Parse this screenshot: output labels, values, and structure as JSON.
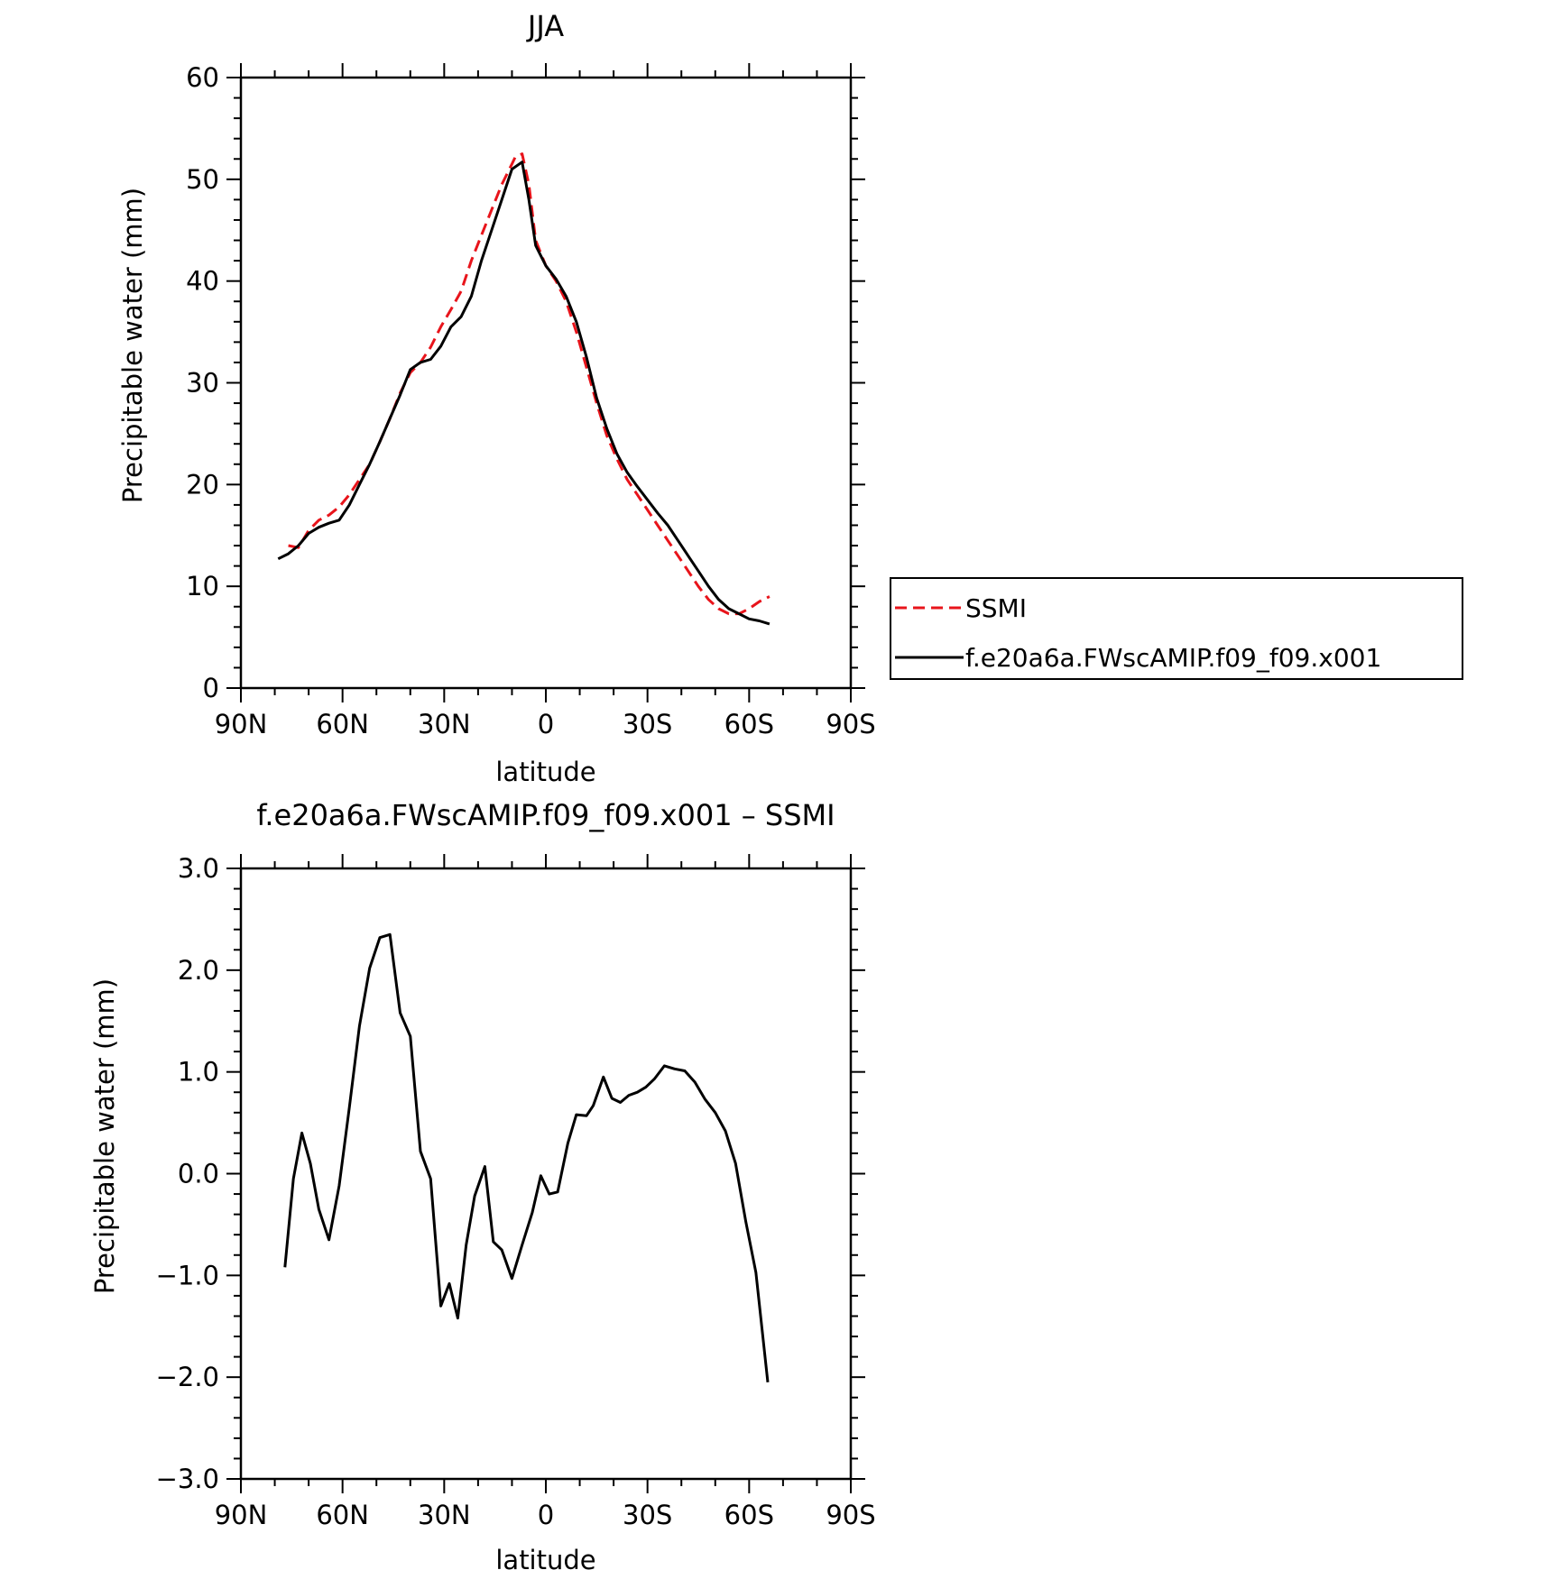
{
  "chart_data": [
    {
      "type": "line",
      "title": "JJA",
      "xlabel": "latitude",
      "ylabel": "Precipitable water (mm)",
      "xlim": [
        90,
        -90
      ],
      "ylim": [
        0,
        60
      ],
      "x_ticks": [
        90,
        60,
        30,
        0,
        -30,
        -60,
        -90
      ],
      "x_tick_labels": [
        "90N",
        "60N",
        "30N",
        "0",
        "30S",
        "60S",
        "90S"
      ],
      "y_ticks": [
        0,
        10,
        20,
        30,
        40,
        50,
        60
      ],
      "y_tick_labels": [
        "0",
        "10",
        "20",
        "30",
        "40",
        "50",
        "60"
      ],
      "legend_position": "right",
      "series": [
        {
          "name": "SSMI",
          "color": "#e8141b",
          "dash": "dashed",
          "x": [
            76,
            73,
            70,
            67,
            64,
            61,
            58,
            55,
            52,
            49,
            46,
            43,
            40,
            37,
            34,
            31,
            28,
            25,
            22,
            19,
            16,
            13,
            10,
            9,
            7,
            5,
            3,
            0,
            -3,
            -6,
            -9,
            -12,
            -15,
            -18,
            -21,
            -24,
            -27,
            -30,
            -33,
            -36,
            -39,
            -42,
            -45,
            -48,
            -51,
            -54,
            -57,
            -60,
            -63,
            -66
          ],
          "y": [
            14.0,
            13.8,
            15.5,
            16.5,
            17.0,
            17.8,
            19.0,
            20.5,
            22.0,
            24.2,
            26.5,
            29.0,
            31.0,
            32.0,
            33.5,
            35.5,
            37.2,
            39.0,
            42.0,
            44.5,
            47.0,
            49.5,
            51.5,
            52.2,
            52.5,
            49.5,
            44.0,
            41.5,
            40.0,
            38.0,
            35.0,
            31.5,
            28.0,
            24.8,
            22.5,
            20.5,
            19.0,
            17.5,
            16.0,
            14.5,
            13.0,
            11.5,
            10.0,
            8.7,
            7.8,
            7.3,
            7.3,
            7.8,
            8.5,
            9.0
          ]
        },
        {
          "name": "f.e20a6a.FWscAMIP.f09_f09.x001",
          "color": "#000000",
          "dash": "solid",
          "x": [
            79,
            76,
            73,
            70,
            67,
            64,
            61,
            58,
            55,
            52,
            49,
            46,
            43,
            40,
            37,
            34,
            31,
            28,
            25,
            22,
            19,
            16,
            13,
            10,
            7,
            5,
            3,
            0,
            -3,
            -6,
            -9,
            -12,
            -15,
            -18,
            -21,
            -24,
            -27,
            -30,
            -33,
            -36,
            -39,
            -42,
            -45,
            -48,
            -51,
            -54,
            -57,
            -60,
            -63,
            -66
          ],
          "y": [
            12.7,
            13.2,
            14.0,
            15.2,
            15.8,
            16.2,
            16.5,
            18.0,
            20.0,
            22.0,
            24.2,
            26.5,
            28.8,
            31.3,
            32.0,
            32.3,
            33.6,
            35.5,
            36.5,
            38.5,
            42.0,
            45.0,
            48.0,
            51.0,
            51.7,
            48.0,
            43.5,
            41.5,
            40.2,
            38.5,
            36.0,
            32.5,
            28.5,
            25.5,
            23.0,
            21.2,
            19.8,
            18.5,
            17.2,
            16.0,
            14.5,
            13.0,
            11.5,
            10.0,
            8.7,
            7.8,
            7.3,
            6.8,
            6.6,
            6.3
          ]
        }
      ]
    },
    {
      "type": "line",
      "title": "f.e20a6a.FWscAMIP.f09_f09.x001 – SSMI",
      "xlabel": "latitude",
      "ylabel": "Precipitable water (mm)",
      "xlim": [
        90,
        -90
      ],
      "ylim": [
        -3.0,
        3.0
      ],
      "x_ticks": [
        90,
        60,
        30,
        0,
        -30,
        -60,
        -90
      ],
      "x_tick_labels": [
        "90N",
        "60N",
        "30N",
        "0",
        "30S",
        "60S",
        "90S"
      ],
      "y_ticks": [
        -3,
        -2,
        -1,
        0,
        1,
        2,
        3
      ],
      "y_tick_labels": [
        "−3.0",
        "−2.0",
        "−1.0",
        "0.0",
        "1.0",
        "2.0",
        "3.0"
      ],
      "series": [
        {
          "color": "#000000",
          "dash": "solid",
          "x": [
            77,
            74.5,
            72,
            69.5,
            67,
            64,
            61,
            58,
            55,
            52,
            49,
            46,
            43,
            40,
            37,
            34,
            31,
            28.5,
            26,
            23.5,
            21,
            18,
            15.5,
            13,
            10,
            7,
            4,
            1.5,
            -1,
            -3.5,
            -6.5,
            -9,
            -12,
            -14,
            -17,
            -19.5,
            -22,
            -24.5,
            -27,
            -29.5,
            -32,
            -35,
            -38,
            -41,
            -44,
            -47,
            -50,
            -53,
            -56,
            -59,
            -62,
            -65.5
          ],
          "y": [
            -0.92,
            -0.05,
            0.4,
            0.1,
            -0.35,
            -0.65,
            -0.12,
            0.65,
            1.45,
            2.02,
            2.32,
            2.35,
            1.58,
            1.35,
            0.22,
            -0.05,
            -1.3,
            -1.08,
            -1.42,
            -0.7,
            -0.22,
            0.07,
            -0.67,
            -0.75,
            -1.03,
            -0.7,
            -0.38,
            -0.02,
            -0.2,
            -0.18,
            0.3,
            0.58,
            0.57,
            0.67,
            0.95,
            0.74,
            0.7,
            0.77,
            0.8,
            0.85,
            0.93,
            1.06,
            1.03,
            1.01,
            0.9,
            0.73,
            0.6,
            0.42,
            0.1,
            -0.47,
            -0.97,
            -2.05
          ]
        }
      ]
    }
  ]
}
